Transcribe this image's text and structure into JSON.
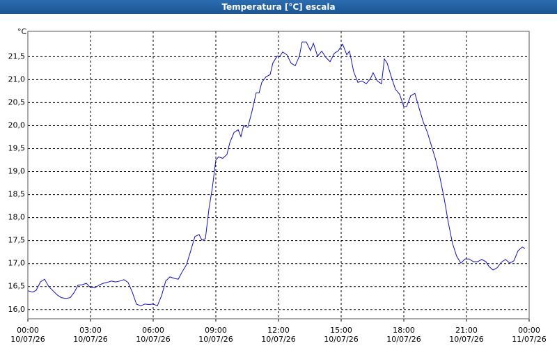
{
  "chart_data": {
    "type": "line",
    "title": "Temperatura [°C] escala",
    "y_unit": "°C",
    "x": [
      0,
      0.23,
      0.4,
      0.6,
      0.8,
      1,
      1.2,
      1.4,
      1.6,
      1.83,
      2.03,
      2.23,
      2.4,
      2.6,
      2.8,
      3,
      3.2,
      3.4,
      3.6,
      3.8,
      4,
      4.2,
      4.4,
      4.6,
      4.8,
      5,
      5.2,
      5.4,
      5.6,
      5.8,
      6,
      6.2,
      6.4,
      6.6,
      6.8,
      7,
      7.2,
      7.4,
      7.6,
      7.8,
      8,
      8.2,
      8.33,
      8.5,
      8.67,
      8.83,
      9,
      9.13,
      9.33,
      9.53,
      9.67,
      9.87,
      10.07,
      10.2,
      10.33,
      10.53,
      10.73,
      10.93,
      11.07,
      11.2,
      11.4,
      11.6,
      11.73,
      11.93,
      12.07,
      12.2,
      12.4,
      12.6,
      12.8,
      13,
      13.13,
      13.33,
      13.53,
      13.67,
      13.87,
      14.07,
      14.27,
      14.47,
      14.67,
      14.87,
      15.07,
      15.27,
      15.4,
      15.6,
      15.8,
      16,
      16.2,
      16.4,
      16.53,
      16.73,
      16.93,
      17.07,
      17.2,
      17.4,
      17.6,
      17.8,
      18,
      18.13,
      18.33,
      18.53,
      18.73,
      18.93,
      19.13,
      19.33,
      19.53,
      19.73,
      19.93,
      20.13,
      20.33,
      20.53,
      20.73,
      20.93,
      21.13,
      21.33,
      21.53,
      21.73,
      21.93,
      22.07,
      22.27,
      22.47,
      22.67,
      22.87,
      23.07,
      23.27,
      23.47,
      23.67,
      23.8
    ],
    "series": [
      {
        "color": "#1010c0",
        "values": [
          16.41,
          16.38,
          16.42,
          16.6,
          16.66,
          16.5,
          16.41,
          16.32,
          16.26,
          16.24,
          16.26,
          16.38,
          16.53,
          16.54,
          16.57,
          16.48,
          16.47,
          16.53,
          16.57,
          16.59,
          16.62,
          16.6,
          16.62,
          16.65,
          16.59,
          16.38,
          16.12,
          16.08,
          16.12,
          16.11,
          16.12,
          16.08,
          16.3,
          16.62,
          16.71,
          16.68,
          16.66,
          16.83,
          16.98,
          17.28,
          17.59,
          17.63,
          17.51,
          17.54,
          18.19,
          18.64,
          19.25,
          19.32,
          19.29,
          19.37,
          19.63,
          19.85,
          19.91,
          19.76,
          20.0,
          19.96,
          20.31,
          20.71,
          20.71,
          20.94,
          21.06,
          21.11,
          21.36,
          21.51,
          21.51,
          21.6,
          21.54,
          21.36,
          21.3,
          21.51,
          21.82,
          21.82,
          21.63,
          21.79,
          21.51,
          21.62,
          21.48,
          21.39,
          21.57,
          21.63,
          21.77,
          21.54,
          21.62,
          21.17,
          20.94,
          20.97,
          20.91,
          21.02,
          21.15,
          20.97,
          20.91,
          21.45,
          21.36,
          21.06,
          20.79,
          20.68,
          20.41,
          20.41,
          20.65,
          20.7,
          20.38,
          20.08,
          19.85,
          19.55,
          19.25,
          18.87,
          18.42,
          17.89,
          17.44,
          17.16,
          17.01,
          17.1,
          17.1,
          17.04,
          17.04,
          17.09,
          17.04,
          16.94,
          16.86,
          16.91,
          17.03,
          17.09,
          17.01,
          17.06,
          17.28,
          17.36,
          17.33
        ]
      }
    ],
    "xlim": [
      0,
      24
    ],
    "ylim": [
      15.8,
      22.05
    ],
    "xticks": [
      {
        "value": 0,
        "label": "00:00\n10/07/26"
      },
      {
        "value": 3,
        "label": "03:00\n10/07/26"
      },
      {
        "value": 6,
        "label": "06:00\n10/07/26"
      },
      {
        "value": 9,
        "label": "09:00\n10/07/26"
      },
      {
        "value": 12,
        "label": "12:00\n10/07/26"
      },
      {
        "value": 15,
        "label": "15:00\n10/07/26"
      },
      {
        "value": 18,
        "label": "18:00\n10/07/26"
      },
      {
        "value": 21,
        "label": "21:00\n10/07/26"
      },
      {
        "value": 24,
        "label": "00:00\n11/07/26"
      }
    ],
    "yticks": [
      {
        "value": 16,
        "label": "16,0"
      },
      {
        "value": 16.5,
        "label": "16,5"
      },
      {
        "value": 17,
        "label": "17,0"
      },
      {
        "value": 17.5,
        "label": "17,5"
      },
      {
        "value": 18,
        "label": "18,0"
      },
      {
        "value": 18.5,
        "label": "18,5"
      },
      {
        "value": 19,
        "label": "19,0"
      },
      {
        "value": 19.5,
        "label": "19,5"
      },
      {
        "value": 20,
        "label": "20,0"
      },
      {
        "value": 20.5,
        "label": "20,5"
      },
      {
        "value": 21,
        "label": "21,0"
      },
      {
        "value": 21.5,
        "label": "21,5"
      }
    ],
    "grid": true
  }
}
